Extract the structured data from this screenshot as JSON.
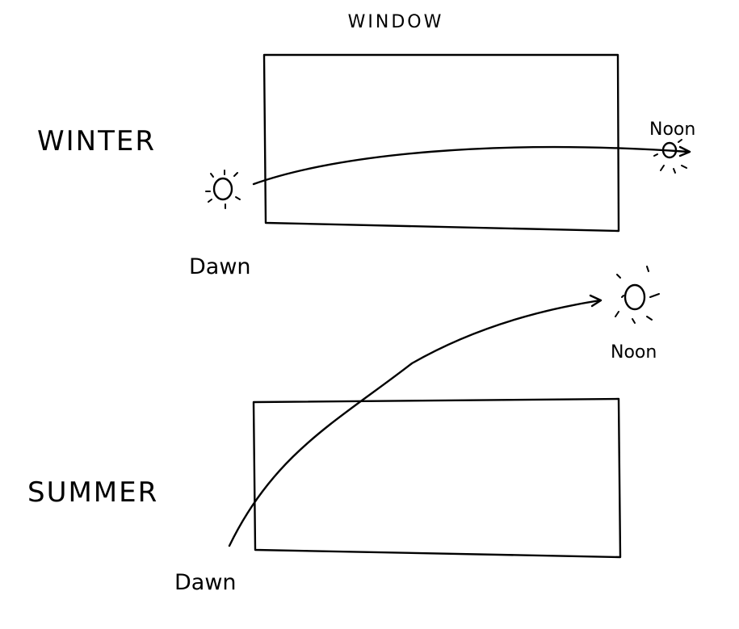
{
  "diagram": {
    "title": "WINDOW",
    "ink_color": "#000000",
    "background_color": "#ffffff",
    "winter": {
      "season_label": "WINTER",
      "start_label": "Dawn",
      "end_label": "Noon"
    },
    "summer": {
      "season_label": "SUMMER",
      "start_label": "Dawn",
      "end_label": "Noon"
    }
  }
}
